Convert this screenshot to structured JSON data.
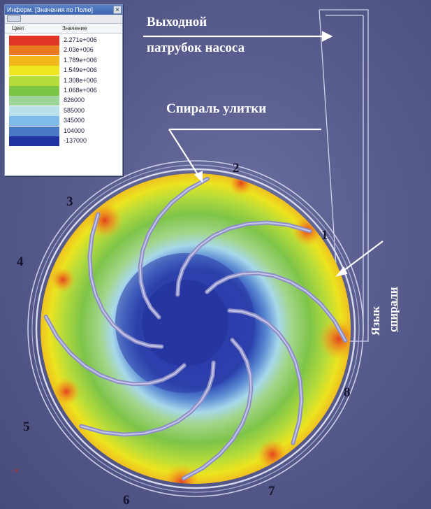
{
  "legend": {
    "title": "Информ. [Значения по Полю]",
    "close_glyph": "×",
    "header_color": "Цвет",
    "header_value": "Значение",
    "rows": [
      {
        "color": "#e03524",
        "value": "2.271e+006"
      },
      {
        "color": "#ea7a1e",
        "value": "2.03e+006"
      },
      {
        "color": "#f3b81c",
        "value": "1.789e+006"
      },
      {
        "color": "#eee61f",
        "value": "1.549e+006"
      },
      {
        "color": "#b6dc3a",
        "value": "1.308e+006"
      },
      {
        "color": "#7cc445",
        "value": "1.068e+006"
      },
      {
        "color": "#9ed69a",
        "value": "826000"
      },
      {
        "color": "#b9e1ec",
        "value": "585000"
      },
      {
        "color": "#7fbbe8",
        "value": "345000"
      },
      {
        "color": "#4878c6",
        "value": "104000"
      },
      {
        "color": "#2232a0",
        "value": "-137000"
      }
    ]
  },
  "annotations": {
    "outlet_line1": "Выходной",
    "outlet_line2": "патрубок насоса",
    "volute": "Спираль улитки",
    "tongue_line1": "Язык",
    "tongue_line2": "спирали"
  },
  "numbers": [
    "1",
    "2",
    "3",
    "4",
    "5",
    "6",
    "7",
    "8"
  ],
  "axis_marker": "-×"
}
